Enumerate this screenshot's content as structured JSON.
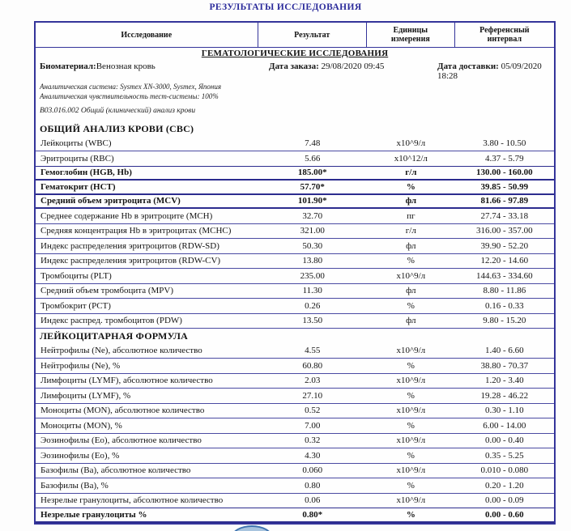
{
  "page": {
    "title": "РЕЗУЛЬТАТЫ ИССЛЕДОВАНИЯ"
  },
  "colors": {
    "border_navy": "#34349a",
    "title_blue": "#2b2b9b",
    "stamp_blue": "#3f74b0"
  },
  "table": {
    "columns": [
      "Исследование",
      "Результат",
      "Единицы измерения",
      "Референсный интервал"
    ],
    "section_title": "ГЕМАТОЛОГИЧЕСКИЕ ИССЛЕДОВАНИЯ",
    "biomaterial_label": "Биоматериал:",
    "biomaterial_value": "Венозная кровь",
    "order_date_label": "Дата заказа:",
    "order_date_value": "29/08/2020 09:45",
    "delivery_date_label": "Дата доставки:",
    "delivery_date_value": "05/09/2020 18:28",
    "analytical_system": "Аналитическая система: Sysmex XN-3000, Sysmex, Япония",
    "analytical_sensitivity": "Аналитическая чувствительность тест-системы: 100%",
    "test_code": "В03.016.002 Общий (клинический) анализ крови",
    "groups": [
      {
        "title": "ОБЩИЙ АНАЛИЗ КРОВИ (CBC)",
        "rows": [
          {
            "name": "Лейкоциты (WBC)",
            "result": "7.48",
            "units": "x10^9/л",
            "ref": "3.80 - 10.50",
            "abnormal": false
          },
          {
            "name": "Эритроциты (RBC)",
            "result": "5.66",
            "units": "x10^12/л",
            "ref": "4.37 - 5.79",
            "abnormal": false
          },
          {
            "name": "Гемоглобин (HGB, Hb)",
            "result": "185.00*",
            "units": "г/л",
            "ref": "130.00 - 160.00",
            "abnormal": true
          },
          {
            "name": "Гематокрит (HCT)",
            "result": "57.70*",
            "units": "%",
            "ref": "39.85 - 50.99",
            "abnormal": true
          },
          {
            "name": "Средний объем эритроцита (MCV)",
            "result": "101.90*",
            "units": "фл",
            "ref": "81.66 - 97.89",
            "abnormal": true
          },
          {
            "name": "Среднее содержание Hb в эритроците (MCH)",
            "result": "32.70",
            "units": "пг",
            "ref": "27.74 - 33.18",
            "abnormal": false
          },
          {
            "name": "Средняя концентрация Hb в эритроцитах (MCHC)",
            "result": "321.00",
            "units": "г/л",
            "ref": "316.00 - 357.00",
            "abnormal": false
          },
          {
            "name": "Индекс распределения эритроцитов (RDW-SD)",
            "result": "50.30",
            "units": "фл",
            "ref": "39.90 - 52.20",
            "abnormal": false
          },
          {
            "name": "Индекс распределения эритроцитов (RDW-CV)",
            "result": "13.80",
            "units": "%",
            "ref": "12.20 - 14.60",
            "abnormal": false
          },
          {
            "name": "Тромбоциты (PLT)",
            "result": "235.00",
            "units": "x10^9/л",
            "ref": "144.63 - 334.60",
            "abnormal": false
          },
          {
            "name": "Средний объем тромбоцита (MPV)",
            "result": "11.30",
            "units": "фл",
            "ref": "8.80 - 11.86",
            "abnormal": false
          },
          {
            "name": "Тромбокрит (PCT)",
            "result": "0.26",
            "units": "%",
            "ref": "0.16 - 0.33",
            "abnormal": false
          },
          {
            "name": "Индекс распред. тромбоцитов (PDW)",
            "result": "13.50",
            "units": "фл",
            "ref": "9.80 - 15.20",
            "abnormal": false
          }
        ]
      },
      {
        "title": "ЛЕЙКОЦИТАРНАЯ ФОРМУЛА",
        "rows": [
          {
            "name": "Нейтрофилы (Ne), абсолютное количество",
            "result": "4.55",
            "units": "x10^9/л",
            "ref": "1.40 - 6.60",
            "abnormal": false
          },
          {
            "name": "Нейтрофилы (Ne), %",
            "result": "60.80",
            "units": "%",
            "ref": "38.80 - 70.37",
            "abnormal": false
          },
          {
            "name": "Лимфоциты (LYMF), абсолютное количество",
            "result": "2.03",
            "units": "x10^9/л",
            "ref": "1.20 - 3.40",
            "abnormal": false
          },
          {
            "name": "Лимфоциты (LYMF), %",
            "result": "27.10",
            "units": "%",
            "ref": "19.28 - 46.22",
            "abnormal": false
          },
          {
            "name": "Моноциты (MON), абсолютное количество",
            "result": "0.52",
            "units": "x10^9/л",
            "ref": "0.30 - 1.10",
            "abnormal": false
          },
          {
            "name": "Моноциты (MON), %",
            "result": "7.00",
            "units": "%",
            "ref": "6.00 - 14.00",
            "abnormal": false
          },
          {
            "name": "Эозинофилы (Eo), абсолютное количество",
            "result": "0.32",
            "units": "x10^9/л",
            "ref": "0.00 - 0.40",
            "abnormal": false
          },
          {
            "name": "Эозинофилы (Eo), %",
            "result": "4.30",
            "units": "%",
            "ref": "0.35 - 5.25",
            "abnormal": false
          },
          {
            "name": "Базофилы (Ba), абсолютное количество",
            "result": "0.060",
            "units": "x10^9/л",
            "ref": "0.010 - 0.080",
            "abnormal": false
          },
          {
            "name": "Базофилы (Ba), %",
            "result": "0.80",
            "units": "%",
            "ref": "0.20 - 1.20",
            "abnormal": false
          },
          {
            "name": "Незрелые гранулоциты, абсолютное количество",
            "result": "0.06",
            "units": "x10^9/л",
            "ref": "0.00 - 0.09",
            "abnormal": false
          },
          {
            "name": "Незрелые гранулоциты %",
            "result": "0.80*",
            "units": "%",
            "ref": "0.00 - 0.60",
            "abnormal": true
          }
        ]
      }
    ]
  }
}
